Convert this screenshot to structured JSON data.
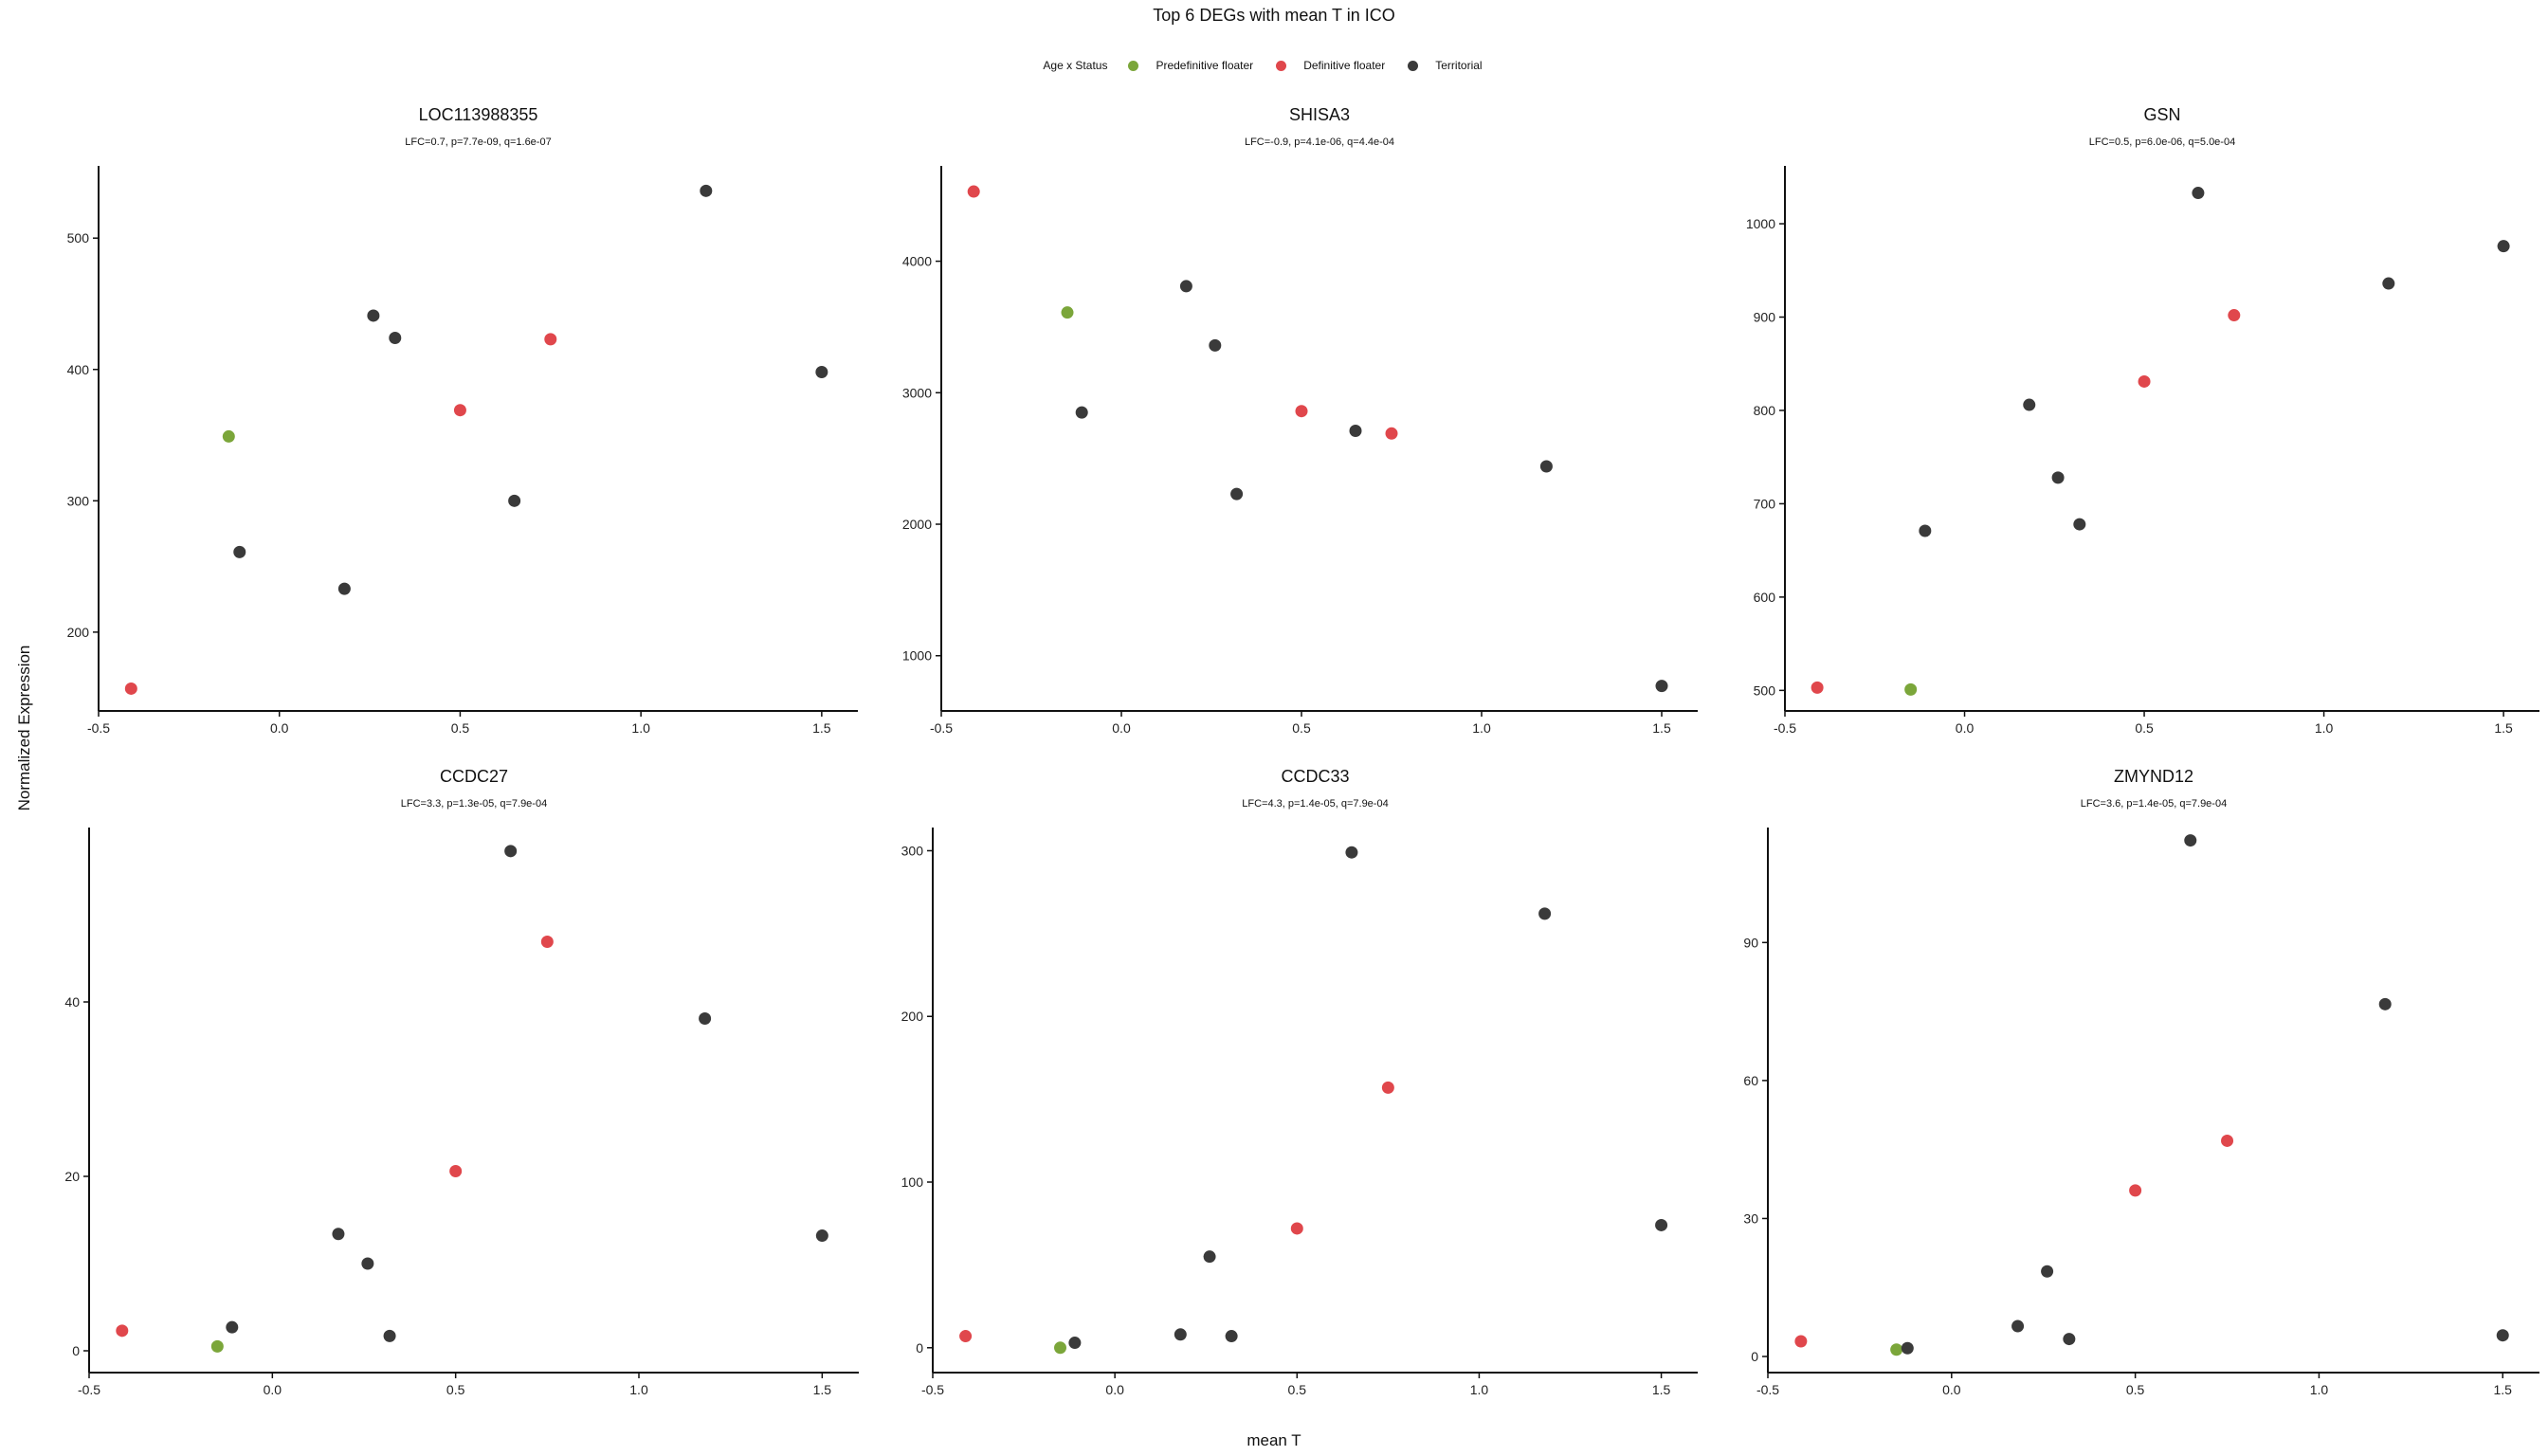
{
  "title": "Top 6 DEGs with mean T in ICO",
  "legend": {
    "title": "Age x Status",
    "items": [
      {
        "label": "Predefinitive floater",
        "color": "#7ba63a"
      },
      {
        "label": "Definitive floater",
        "color": "#e0474c"
      },
      {
        "label": "Territorial",
        "color": "#3a3a3a"
      }
    ]
  },
  "ylabel": "Normalized Expression",
  "xlabel": "mean T",
  "colors": {
    "Predefinitive floater": "#7ba63a",
    "Definitive floater": "#e0474c",
    "Territorial": "#3a3a3a"
  },
  "chart_data": [
    {
      "type": "scatter",
      "title": "LOC113988355",
      "subtitle": "LFC=0.7, p=7.7e-09, q=1.6e-07",
      "xlim": [
        -0.5,
        1.6
      ],
      "ylim": [
        140,
        555
      ],
      "xticks": [
        -0.5,
        0.0,
        0.5,
        1.0,
        1.5
      ],
      "yticks": [
        200,
        300,
        400,
        500
      ],
      "points": [
        {
          "x": -0.41,
          "y": 157,
          "group": "Definitive floater"
        },
        {
          "x": -0.14,
          "y": 349,
          "group": "Predefinitive floater"
        },
        {
          "x": -0.11,
          "y": 261,
          "group": "Territorial"
        },
        {
          "x": 0.18,
          "y": 233,
          "group": "Territorial"
        },
        {
          "x": 0.26,
          "y": 441,
          "group": "Territorial"
        },
        {
          "x": 0.32,
          "y": 424,
          "group": "Territorial"
        },
        {
          "x": 0.5,
          "y": 369,
          "group": "Definitive floater"
        },
        {
          "x": 0.65,
          "y": 300,
          "group": "Territorial"
        },
        {
          "x": 0.75,
          "y": 423,
          "group": "Definitive floater"
        },
        {
          "x": 1.18,
          "y": 536,
          "group": "Territorial"
        },
        {
          "x": 1.5,
          "y": 398,
          "group": "Territorial"
        }
      ]
    },
    {
      "type": "scatter",
      "title": "SHISA3",
      "subtitle": "LFC=-0.9, p=4.1e-06, q=4.4e-04",
      "xlim": [
        -0.5,
        1.6
      ],
      "ylim": [
        580,
        4725
      ],
      "xticks": [
        -0.5,
        0.0,
        0.5,
        1.0,
        1.5
      ],
      "yticks": [
        1000,
        2000,
        3000,
        4000
      ],
      "points": [
        {
          "x": -0.41,
          "y": 4530,
          "group": "Definitive floater"
        },
        {
          "x": -0.15,
          "y": 3610,
          "group": "Predefinitive floater"
        },
        {
          "x": -0.11,
          "y": 2850,
          "group": "Territorial"
        },
        {
          "x": 0.18,
          "y": 3810,
          "group": "Territorial"
        },
        {
          "x": 0.26,
          "y": 3360,
          "group": "Territorial"
        },
        {
          "x": 0.32,
          "y": 2230,
          "group": "Territorial"
        },
        {
          "x": 0.5,
          "y": 2860,
          "group": "Definitive floater"
        },
        {
          "x": 0.65,
          "y": 2710,
          "group": "Territorial"
        },
        {
          "x": 0.75,
          "y": 2690,
          "group": "Definitive floater"
        },
        {
          "x": 1.18,
          "y": 2440,
          "group": "Territorial"
        },
        {
          "x": 1.5,
          "y": 770,
          "group": "Territorial"
        }
      ]
    },
    {
      "type": "scatter",
      "title": "GSN",
      "subtitle": "LFC=0.5, p=6.0e-06, q=5.0e-04",
      "xlim": [
        -0.5,
        1.6
      ],
      "ylim": [
        478,
        1062
      ],
      "xticks": [
        -0.5,
        0.0,
        0.5,
        1.0,
        1.5
      ],
      "yticks": [
        500,
        600,
        700,
        800,
        900,
        1000
      ],
      "points": [
        {
          "x": -0.41,
          "y": 503,
          "group": "Definitive floater"
        },
        {
          "x": -0.15,
          "y": 501,
          "group": "Predefinitive floater"
        },
        {
          "x": -0.11,
          "y": 671,
          "group": "Territorial"
        },
        {
          "x": 0.18,
          "y": 806,
          "group": "Territorial"
        },
        {
          "x": 0.26,
          "y": 728,
          "group": "Territorial"
        },
        {
          "x": 0.32,
          "y": 678,
          "group": "Territorial"
        },
        {
          "x": 0.5,
          "y": 831,
          "group": "Definitive floater"
        },
        {
          "x": 0.65,
          "y": 1033,
          "group": "Territorial"
        },
        {
          "x": 0.75,
          "y": 902,
          "group": "Definitive floater"
        },
        {
          "x": 1.18,
          "y": 936,
          "group": "Territorial"
        },
        {
          "x": 1.5,
          "y": 976,
          "group": "Territorial"
        }
      ]
    },
    {
      "type": "scatter",
      "title": "CCDC27",
      "subtitle": "LFC=3.3, p=1.3e-05, q=7.9e-04",
      "xlim": [
        -0.5,
        1.6
      ],
      "ylim": [
        -2.5,
        60
      ],
      "xticks": [
        -0.5,
        0.0,
        0.5,
        1.0,
        1.5
      ],
      "yticks": [
        0,
        20,
        40
      ],
      "points": [
        {
          "x": -0.41,
          "y": 2.3,
          "group": "Definitive floater"
        },
        {
          "x": -0.15,
          "y": 0.5,
          "group": "Predefinitive floater"
        },
        {
          "x": -0.11,
          "y": 2.7,
          "group": "Territorial"
        },
        {
          "x": 0.18,
          "y": 13.4,
          "group": "Territorial"
        },
        {
          "x": 0.26,
          "y": 10.0,
          "group": "Territorial"
        },
        {
          "x": 0.32,
          "y": 1.7,
          "group": "Territorial"
        },
        {
          "x": 0.5,
          "y": 20.6,
          "group": "Definitive floater"
        },
        {
          "x": 0.65,
          "y": 57.3,
          "group": "Territorial"
        },
        {
          "x": 0.75,
          "y": 46.9,
          "group": "Definitive floater"
        },
        {
          "x": 1.18,
          "y": 38.1,
          "group": "Territorial"
        },
        {
          "x": 1.5,
          "y": 13.2,
          "group": "Territorial"
        }
      ]
    },
    {
      "type": "scatter",
      "title": "CCDC33",
      "subtitle": "LFC=4.3, p=1.4e-05, q=7.9e-04",
      "xlim": [
        -0.5,
        1.6
      ],
      "ylim": [
        -15,
        314
      ],
      "xticks": [
        -0.5,
        0.0,
        0.5,
        1.0,
        1.5
      ],
      "yticks": [
        0,
        100,
        200,
        300
      ],
      "points": [
        {
          "x": -0.41,
          "y": 7,
          "group": "Definitive floater"
        },
        {
          "x": -0.15,
          "y": 0,
          "group": "Predefinitive floater"
        },
        {
          "x": -0.11,
          "y": 3,
          "group": "Territorial"
        },
        {
          "x": 0.18,
          "y": 8,
          "group": "Territorial"
        },
        {
          "x": 0.26,
          "y": 55,
          "group": "Territorial"
        },
        {
          "x": 0.32,
          "y": 7,
          "group": "Territorial"
        },
        {
          "x": 0.5,
          "y": 72,
          "group": "Definitive floater"
        },
        {
          "x": 0.65,
          "y": 299,
          "group": "Territorial"
        },
        {
          "x": 0.75,
          "y": 157,
          "group": "Definitive floater"
        },
        {
          "x": 1.18,
          "y": 262,
          "group": "Territorial"
        },
        {
          "x": 1.5,
          "y": 74,
          "group": "Territorial"
        }
      ]
    },
    {
      "type": "scatter",
      "title": "ZMYND12",
      "subtitle": "LFC=3.6, p=1.4e-05, q=7.9e-04",
      "xlim": [
        -0.5,
        1.6
      ],
      "ylim": [
        -3.5,
        115
      ],
      "xticks": [
        -0.5,
        0.0,
        0.5,
        1.0,
        1.5
      ],
      "yticks": [
        0,
        30,
        60,
        90
      ],
      "points": [
        {
          "x": -0.41,
          "y": 3.3,
          "group": "Definitive floater"
        },
        {
          "x": -0.15,
          "y": 1.5,
          "group": "Predefinitive floater"
        },
        {
          "x": -0.12,
          "y": 1.8,
          "group": "Territorial"
        },
        {
          "x": 0.18,
          "y": 6.6,
          "group": "Territorial"
        },
        {
          "x": 0.26,
          "y": 18.5,
          "group": "Territorial"
        },
        {
          "x": 0.32,
          "y": 3.8,
          "group": "Territorial"
        },
        {
          "x": 0.5,
          "y": 36.1,
          "group": "Definitive floater"
        },
        {
          "x": 0.65,
          "y": 112.2,
          "group": "Territorial"
        },
        {
          "x": 0.75,
          "y": 46.9,
          "group": "Definitive floater"
        },
        {
          "x": 1.18,
          "y": 76.6,
          "group": "Territorial"
        },
        {
          "x": 1.5,
          "y": 4.6,
          "group": "Territorial"
        }
      ]
    }
  ]
}
